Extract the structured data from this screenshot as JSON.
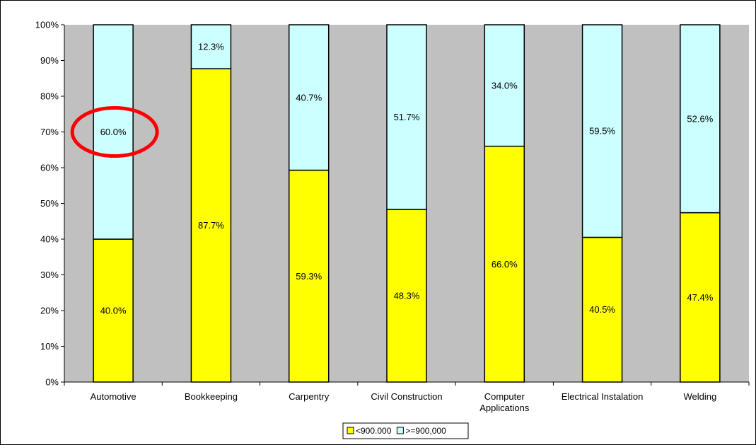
{
  "chart_data": {
    "type": "bar",
    "stacked": true,
    "percent_stacked": true,
    "categories": [
      "Automotive",
      "Bookkeeping",
      "Carpentry",
      "Civil Construction",
      "Computer Applications",
      "Electrical Instalation",
      "Welding"
    ],
    "category_lines": [
      [
        "Automotive"
      ],
      [
        "Bookkeeping"
      ],
      [
        "Carpentry"
      ],
      [
        "Civil Construction"
      ],
      [
        "Computer",
        "Applications"
      ],
      [
        "Electrical Instalation"
      ],
      [
        "Welding"
      ]
    ],
    "series": [
      {
        "name": "<900.000",
        "values": [
          40.0,
          87.7,
          59.3,
          48.3,
          66.0,
          40.5,
          47.4
        ],
        "labels": [
          "40.0%",
          "87.7%",
          "59.3%",
          "48.3%",
          "66.0%",
          "40.5%",
          "47.4%"
        ],
        "color": "#ffff00"
      },
      {
        "name": ">=900,000",
        "values": [
          60.0,
          12.3,
          40.7,
          51.7,
          34.0,
          59.5,
          52.6
        ],
        "labels": [
          "60.0%",
          "12.3%",
          "40.7%",
          "51.7%",
          "34.0%",
          "59.5%",
          "52.6%"
        ],
        "color": "#ccffff"
      }
    ],
    "ylim": [
      0,
      100
    ],
    "yticks": [
      "0%",
      "10%",
      "20%",
      "30%",
      "40%",
      "50%",
      "60%",
      "70%",
      "80%",
      "90%",
      "100%"
    ],
    "plot_background": "#c0c0c0",
    "grid": false,
    "legend_position": "bottom",
    "annotation": {
      "type": "circle",
      "color": "#ff0000",
      "target_category": "Automotive",
      "target_series": ">=900,000"
    }
  }
}
